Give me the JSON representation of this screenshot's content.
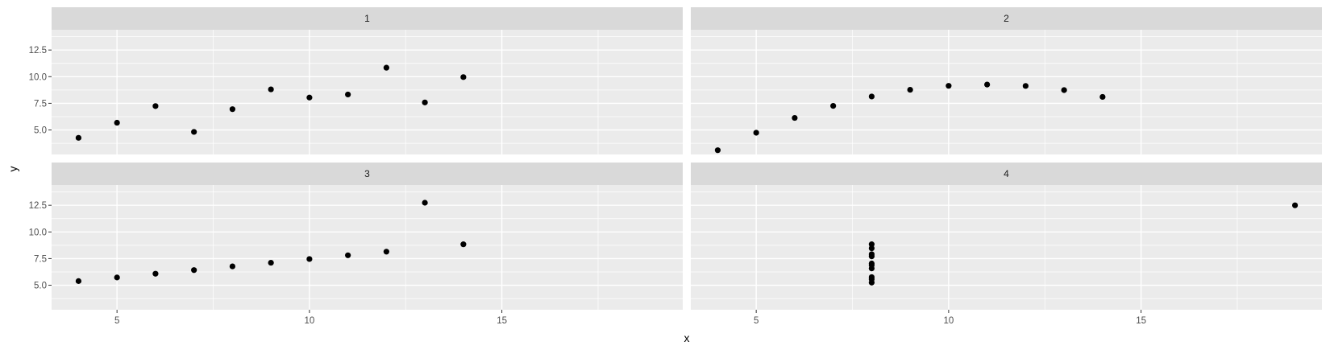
{
  "chart_data": {
    "type": "scatter",
    "xlabel": "x",
    "ylabel": "y",
    "xlim": [
      3.3,
      19.7
    ],
    "ylim": [
      2.7,
      14.4
    ],
    "x_ticks": [
      5,
      10,
      15
    ],
    "y_ticks": [
      5.0,
      7.5,
      10.0,
      12.5
    ],
    "x_tick_labels": [
      "5",
      "10",
      "15"
    ],
    "y_tick_labels": [
      "5.0",
      "7.5",
      "10.0",
      "12.5"
    ],
    "grid": true,
    "colors": {
      "panel_bg": "#ebebeb",
      "strip_bg": "#d9d9d9",
      "grid": "#ffffff",
      "point": "#000000"
    },
    "facets": [
      {
        "label": "1",
        "points": [
          {
            "x": 4,
            "y": 4.26
          },
          {
            "x": 5,
            "y": 5.68
          },
          {
            "x": 6,
            "y": 7.24
          },
          {
            "x": 7,
            "y": 4.82
          },
          {
            "x": 8,
            "y": 6.95
          },
          {
            "x": 9,
            "y": 8.81
          },
          {
            "x": 10,
            "y": 8.04
          },
          {
            "x": 11,
            "y": 8.33
          },
          {
            "x": 12,
            "y": 10.84
          },
          {
            "x": 13,
            "y": 7.58
          },
          {
            "x": 14,
            "y": 9.96
          }
        ]
      },
      {
        "label": "2",
        "points": [
          {
            "x": 4,
            "y": 3.1
          },
          {
            "x": 5,
            "y": 4.74
          },
          {
            "x": 6,
            "y": 6.13
          },
          {
            "x": 7,
            "y": 7.26
          },
          {
            "x": 8,
            "y": 8.14
          },
          {
            "x": 9,
            "y": 8.77
          },
          {
            "x": 10,
            "y": 9.14
          },
          {
            "x": 11,
            "y": 9.26
          },
          {
            "x": 12,
            "y": 9.13
          },
          {
            "x": 13,
            "y": 8.74
          },
          {
            "x": 14,
            "y": 8.1
          }
        ]
      },
      {
        "label": "3",
        "points": [
          {
            "x": 4,
            "y": 5.39
          },
          {
            "x": 5,
            "y": 5.73
          },
          {
            "x": 6,
            "y": 6.08
          },
          {
            "x": 7,
            "y": 6.42
          },
          {
            "x": 8,
            "y": 6.77
          },
          {
            "x": 9,
            "y": 7.11
          },
          {
            "x": 10,
            "y": 7.46
          },
          {
            "x": 11,
            "y": 7.81
          },
          {
            "x": 12,
            "y": 8.15
          },
          {
            "x": 13,
            "y": 12.74
          },
          {
            "x": 14,
            "y": 8.84
          }
        ]
      },
      {
        "label": "4",
        "points": [
          {
            "x": 8,
            "y": 6.58
          },
          {
            "x": 8,
            "y": 5.76
          },
          {
            "x": 8,
            "y": 7.71
          },
          {
            "x": 8,
            "y": 8.84
          },
          {
            "x": 8,
            "y": 8.47
          },
          {
            "x": 8,
            "y": 7.04
          },
          {
            "x": 8,
            "y": 5.25
          },
          {
            "x": 19,
            "y": 12.5
          },
          {
            "x": 8,
            "y": 5.56
          },
          {
            "x": 8,
            "y": 7.91
          },
          {
            "x": 8,
            "y": 6.89
          }
        ]
      }
    ]
  }
}
